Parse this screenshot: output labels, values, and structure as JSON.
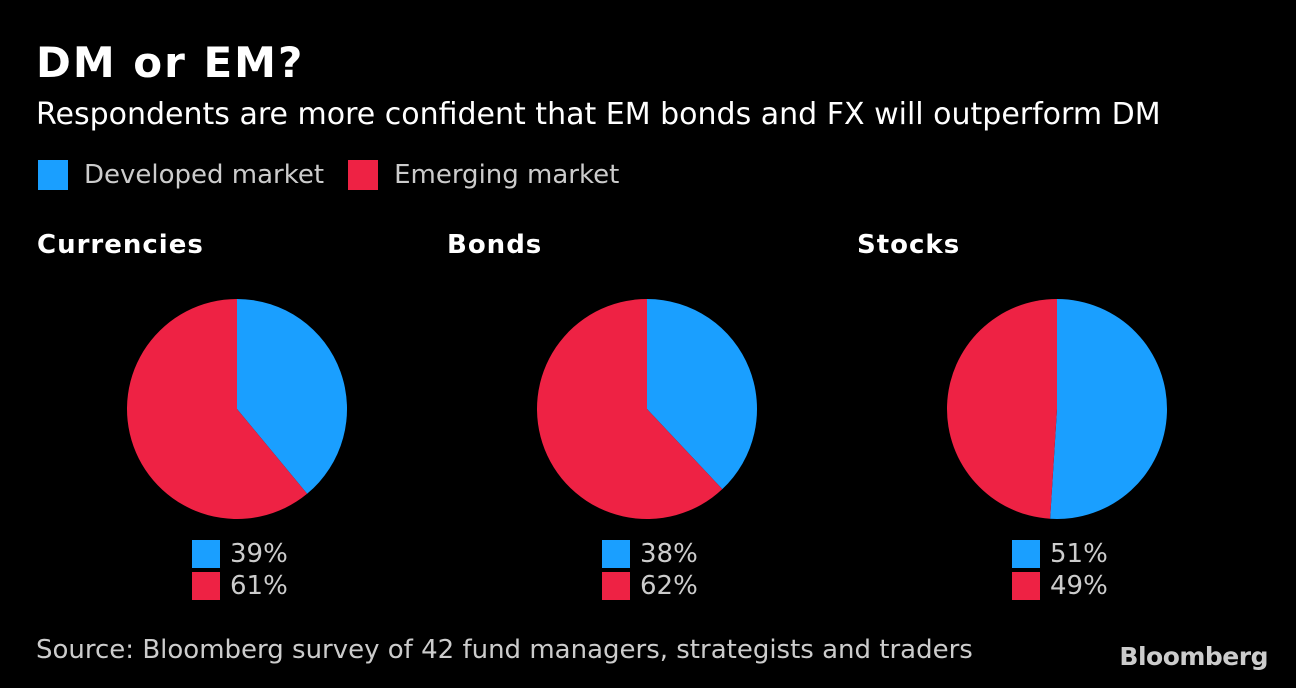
{
  "colors": {
    "developed": "#1a9fff",
    "emerging": "#ee2244",
    "background": "#000000"
  },
  "chart_data": {
    "type": "pie",
    "title": "DM or EM?",
    "subtitle": "Respondents are more confident that EM bonds and FX will outperform DM",
    "legend": [
      {
        "name": "Developed market",
        "color": "#1a9fff"
      },
      {
        "name": "Emerging market",
        "color": "#ee2244"
      }
    ],
    "charts": [
      {
        "title": "Currencies",
        "slices": [
          {
            "name": "Developed market",
            "value": 39,
            "label": "39%"
          },
          {
            "name": "Emerging market",
            "value": 61,
            "label": "61%"
          }
        ]
      },
      {
        "title": "Bonds",
        "slices": [
          {
            "name": "Developed market",
            "value": 38,
            "label": "38%"
          },
          {
            "name": "Emerging market",
            "value": 62,
            "label": "62%"
          }
        ]
      },
      {
        "title": "Stocks",
        "slices": [
          {
            "name": "Developed market",
            "value": 51,
            "label": "51%"
          },
          {
            "name": "Emerging market",
            "value": 49,
            "label": "49%"
          }
        ]
      }
    ],
    "source": "Source: Bloomberg survey of 42 fund managers, strategists and traders",
    "brand": "Bloomberg"
  }
}
